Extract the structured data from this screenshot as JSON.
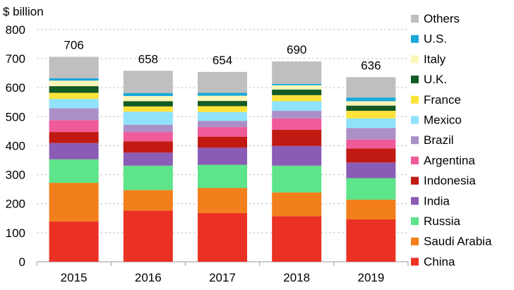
{
  "chart_data": {
    "type": "bar",
    "stacked": true,
    "ylabel": "$ billion",
    "ylim": [
      0,
      800
    ],
    "yticks": [
      0,
      100,
      200,
      300,
      400,
      500,
      600,
      700,
      800
    ],
    "grid": true,
    "legend_position": "right",
    "categories": [
      "2015",
      "2016",
      "2017",
      "2018",
      "2019"
    ],
    "totals": [
      706,
      658,
      654,
      690,
      636
    ],
    "series": [
      {
        "name": "China",
        "color": "#ea3123",
        "values": [
          139,
          176,
          168,
          157,
          146
        ]
      },
      {
        "name": "Saudi Arabia",
        "color": "#f27f1b",
        "values": [
          133,
          71,
          86,
          82,
          68
        ]
      },
      {
        "name": "Russia",
        "color": "#5ee48a",
        "values": [
          81,
          84,
          80,
          92,
          74
        ]
      },
      {
        "name": "India",
        "color": "#8a5cb5",
        "values": [
          56,
          45,
          59,
          68,
          54
        ]
      },
      {
        "name": "Indonesia",
        "color": "#c01a12",
        "values": [
          38,
          39,
          38,
          56,
          48
        ]
      },
      {
        "name": "Argentina",
        "color": "#ef5a99",
        "values": [
          41,
          32,
          33,
          39,
          31
        ]
      },
      {
        "name": "Brazil",
        "color": "#ab90c8",
        "values": [
          41,
          25,
          21,
          26,
          40
        ]
      },
      {
        "name": "Mexico",
        "color": "#8fe2f9",
        "values": [
          32,
          45,
          31,
          33,
          33
        ]
      },
      {
        "name": "France",
        "color": "#fde23a",
        "values": [
          21,
          18,
          20,
          21,
          26
        ]
      },
      {
        "name": "U.K.",
        "color": "#145a24",
        "values": [
          23,
          18,
          18,
          19,
          18
        ]
      },
      {
        "name": "Italy",
        "color": "#fdf6b8",
        "values": [
          19,
          18,
          18,
          15,
          15
        ]
      },
      {
        "name": "U.S.",
        "color": "#1aa7d8",
        "values": [
          8,
          10,
          10,
          5,
          13
        ]
      },
      {
        "name": "Others",
        "color": "#bfbfbf",
        "values": [
          74,
          77,
          72,
          77,
          70
        ]
      }
    ]
  }
}
